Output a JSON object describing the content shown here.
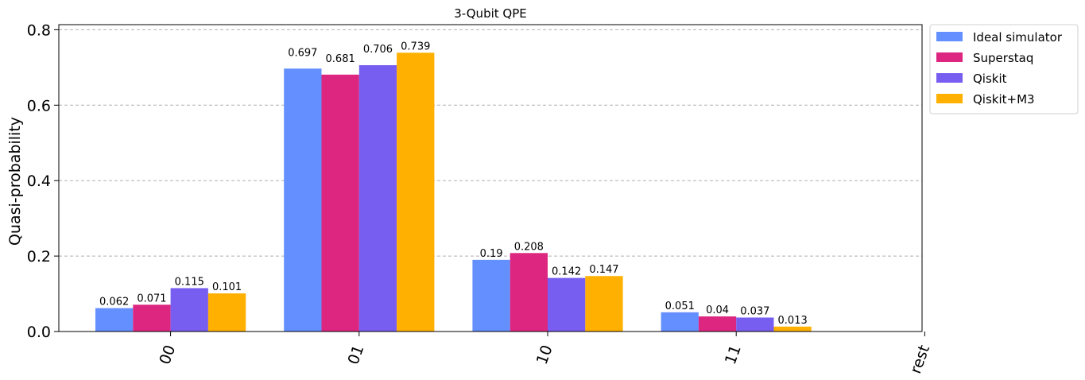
{
  "chart_data": {
    "type": "bar",
    "title": "3-Qubit QPE",
    "xlabel": "",
    "ylabel": "Quasi-probability",
    "categories": [
      "00",
      "01",
      "10",
      "11",
      "rest"
    ],
    "ylim": [
      0,
      0.8
    ],
    "yticks": [
      0.0,
      0.2,
      0.4,
      0.6,
      0.8
    ],
    "ytick_labels": [
      "0.0",
      "0.2",
      "0.4",
      "0.6",
      "0.8"
    ],
    "grid": true,
    "legend_position": "outside-top-right",
    "series": [
      {
        "name": "Ideal simulator",
        "color": "#648FFF",
        "values": [
          0.062,
          0.697,
          0.19,
          0.051,
          null
        ],
        "labels": [
          "0.062",
          "0.697",
          "0.19",
          "0.051",
          ""
        ]
      },
      {
        "name": "Superstaq",
        "color": "#DC267F",
        "values": [
          0.071,
          0.681,
          0.208,
          0.04,
          null
        ],
        "labels": [
          "0.071",
          "0.681",
          "0.208",
          "0.04",
          ""
        ]
      },
      {
        "name": "Qiskit",
        "color": "#785EF0",
        "values": [
          0.115,
          0.706,
          0.142,
          0.037,
          null
        ],
        "labels": [
          "0.115",
          "0.706",
          "0.142",
          "0.037",
          ""
        ]
      },
      {
        "name": "Qiskit+M3",
        "color": "#FFB000",
        "values": [
          0.101,
          0.739,
          0.147,
          0.013,
          null
        ],
        "labels": [
          "0.101",
          "0.739",
          "0.147",
          "0.013",
          ""
        ]
      }
    ]
  }
}
